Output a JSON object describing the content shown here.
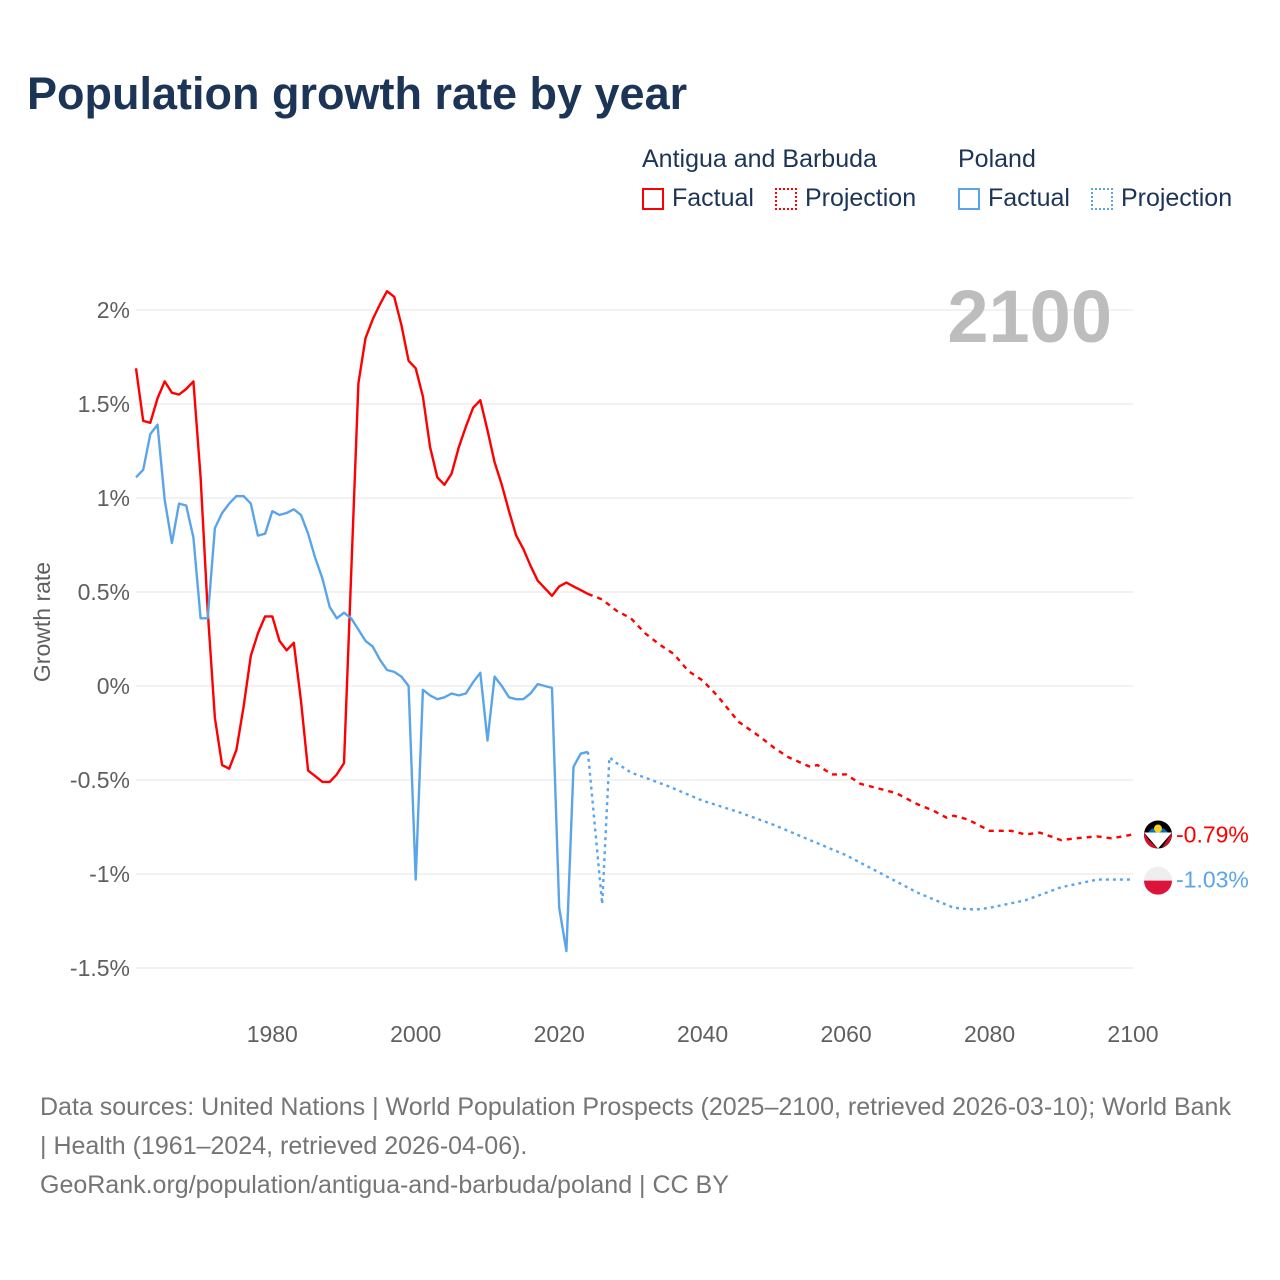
{
  "title": "Population growth rate by year",
  "legend": {
    "groups": [
      {
        "name": "Antigua and Barbuda",
        "color": "#ff0000",
        "factual_label": "Factual",
        "projection_label": "Projection"
      },
      {
        "name": "Poland",
        "color": "#5aa5ea",
        "factual_label": "Factual",
        "projection_label": "Projection"
      }
    ]
  },
  "footer": {
    "sources": "Data sources: United Nations | World Population Prospects (2025–2100, retrieved 2026-03-10); World Bank | Health (1961–2024, retrieved 2026-04-06).",
    "link": "GeoRank.org/population/antigua-and-barbuda/poland | CC BY"
  },
  "chart_data": {
    "type": "line",
    "title": "Population growth rate by year",
    "xlabel": "",
    "ylabel": "Growth rate",
    "year_watermark": "2100",
    "xlim": [
      1961,
      2100
    ],
    "ylim": [
      -1.7,
      2.2
    ],
    "x_ticks": [
      1980,
      2000,
      2020,
      2040,
      2060,
      2080,
      2100
    ],
    "y_ticks": [
      {
        "value": 2,
        "label": "2%"
      },
      {
        "value": 1.5,
        "label": "1.5%"
      },
      {
        "value": 1,
        "label": "1%"
      },
      {
        "value": 0.5,
        "label": "0.5%"
      },
      {
        "value": 0,
        "label": "0%"
      },
      {
        "value": -0.5,
        "label": "-0.5%"
      },
      {
        "value": -1,
        "label": "-1%"
      },
      {
        "value": -1.5,
        "label": "-1.5%"
      }
    ],
    "grid": true,
    "legend_position": "top-right",
    "series": [
      {
        "name": "Antigua and Barbuda",
        "color": "#ff0000",
        "end_label": "-0.79%",
        "factual": {
          "x": [
            1961,
            1962,
            1963,
            1964,
            1965,
            1966,
            1967,
            1968,
            1969,
            1970,
            1971,
            1972,
            1973,
            1974,
            1975,
            1976,
            1977,
            1978,
            1979,
            1980,
            1981,
            1982,
            1983,
            1984,
            1985,
            1986,
            1987,
            1988,
            1989,
            1990,
            1991,
            1992,
            1993,
            1994,
            1995,
            1996,
            1997,
            1998,
            1999,
            2000,
            2001,
            2002,
            2003,
            2004,
            2005,
            2006,
            2007,
            2008,
            2009,
            2010,
            2011,
            2012,
            2013,
            2014,
            2015,
            2016,
            2017,
            2018,
            2019,
            2020,
            2021,
            2022,
            2023,
            2024
          ],
          "y": [
            1.69,
            1.41,
            1.4,
            1.53,
            1.62,
            1.56,
            1.55,
            1.58,
            1.62,
            1.11,
            0.4,
            -0.17,
            -0.42,
            -0.44,
            -0.34,
            -0.11,
            0.16,
            0.28,
            0.37,
            0.37,
            0.24,
            0.19,
            0.23,
            -0.08,
            -0.45,
            -0.48,
            -0.51,
            -0.51,
            -0.47,
            -0.41,
            0.6,
            1.61,
            1.85,
            1.95,
            2.03,
            2.1,
            2.07,
            1.92,
            1.73,
            1.69,
            1.54,
            1.27,
            1.11,
            1.07,
            1.13,
            1.27,
            1.38,
            1.48,
            1.52,
            1.36,
            1.19,
            1.07,
            0.93,
            0.8,
            0.73,
            0.64,
            0.56,
            0.52,
            0.48,
            0.53,
            0.55,
            0.53,
            0.51,
            0.49
          ]
        },
        "projection": {
          "x": [
            2024,
            2026,
            2028,
            2030,
            2032,
            2034,
            2036,
            2038,
            2040,
            2042,
            2045,
            2048,
            2050,
            2052,
            2055,
            2056,
            2058,
            2060,
            2062,
            2065,
            2067,
            2070,
            2072,
            2074,
            2075,
            2077,
            2080,
            2083,
            2085,
            2087,
            2090,
            2092,
            2095,
            2097,
            2100
          ],
          "y": [
            0.49,
            0.46,
            0.4,
            0.36,
            0.28,
            0.22,
            0.17,
            0.08,
            0.03,
            -0.05,
            -0.19,
            -0.27,
            -0.33,
            -0.38,
            -0.43,
            -0.42,
            -0.47,
            -0.47,
            -0.52,
            -0.55,
            -0.57,
            -0.63,
            -0.66,
            -0.7,
            -0.69,
            -0.71,
            -0.77,
            -0.77,
            -0.79,
            -0.78,
            -0.82,
            -0.81,
            -0.8,
            -0.81,
            -0.79
          ]
        }
      },
      {
        "name": "Poland",
        "color": "#5aa5ea",
        "end_label": "-1.03%",
        "factual": {
          "x": [
            1961,
            1962,
            1963,
            1964,
            1965,
            1966,
            1967,
            1968,
            1969,
            1970,
            1971,
            1972,
            1973,
            1974,
            1975,
            1976,
            1977,
            1978,
            1979,
            1980,
            1981,
            1982,
            1983,
            1984,
            1985,
            1986,
            1987,
            1988,
            1989,
            1990,
            1991,
            1992,
            1993,
            1994,
            1995,
            1996,
            1997,
            1998,
            1999,
            2000,
            2001,
            2002,
            2003,
            2004,
            2005,
            2006,
            2007,
            2008,
            2009,
            2010,
            2011,
            2012,
            2013,
            2014,
            2015,
            2016,
            2017,
            2018,
            2019,
            2020,
            2021,
            2022,
            2023,
            2024
          ],
          "y": [
            1.11,
            1.15,
            1.34,
            1.39,
            0.99,
            0.76,
            0.97,
            0.96,
            0.79,
            0.36,
            0.36,
            0.84,
            0.92,
            0.97,
            1.01,
            1.01,
            0.97,
            0.8,
            0.81,
            0.93,
            0.91,
            0.92,
            0.94,
            0.91,
            0.81,
            0.68,
            0.57,
            0.42,
            0.36,
            0.39,
            0.36,
            0.3,
            0.24,
            0.21,
            0.14,
            0.085,
            0.075,
            0.05,
            0.0,
            -1.03,
            -0.02,
            -0.05,
            -0.07,
            -0.06,
            -0.04,
            -0.05,
            -0.04,
            0.02,
            0.07,
            -0.29,
            0.05,
            0.0,
            -0.06,
            -0.07,
            -0.07,
            -0.04,
            0.01,
            0.0,
            -0.01,
            -1.18,
            -1.41,
            -0.43,
            -0.36,
            -0.35
          ]
        },
        "projection": {
          "x": [
            2024,
            2026,
            2027,
            2028,
            2030,
            2035,
            2040,
            2045,
            2050,
            2055,
            2060,
            2065,
            2070,
            2075,
            2078,
            2080,
            2085,
            2090,
            2095,
            2100
          ],
          "y": [
            -0.35,
            -1.16,
            -0.38,
            -0.41,
            -0.46,
            -0.53,
            -0.61,
            -0.67,
            -0.74,
            -0.82,
            -0.9,
            -1.0,
            -1.1,
            -1.18,
            -1.19,
            -1.18,
            -1.14,
            -1.07,
            -1.03,
            -1.03
          ]
        }
      }
    ]
  }
}
